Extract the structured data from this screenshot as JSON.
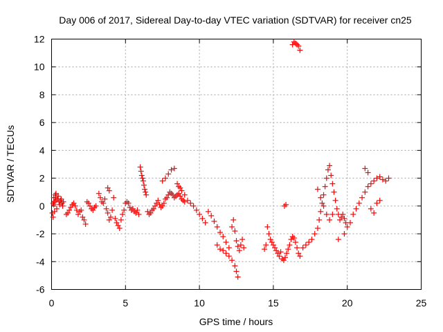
{
  "chart_data": {
    "type": "scatter",
    "title": "Day 006 of 2017, Sidereal Day-to-day VTEC variation (SDTVAR) for receiver cn25",
    "xlabel": "GPS time / hours",
    "ylabel": "SDTVAR / TECUs",
    "xlim": [
      0,
      25
    ],
    "ylim": [
      -6,
      12
    ],
    "x_ticks": [
      0,
      5,
      10,
      15,
      20,
      25
    ],
    "y_ticks": [
      -6,
      -4,
      -2,
      0,
      2,
      4,
      6,
      8,
      10,
      12
    ],
    "grid": true,
    "marker": "+",
    "series_color": "#ff0000",
    "series": [
      {
        "name": "SDTVAR",
        "x": [
          0.05,
          0.1,
          0.15,
          0.2,
          0.25,
          0.3,
          0.35,
          0.4,
          0.45,
          0.5,
          0.55,
          0.6,
          0.65,
          0.7,
          0.75,
          0.8,
          0.1,
          0.2,
          0.3,
          0.15,
          0.25,
          1.0,
          1.1,
          1.2,
          1.3,
          1.4,
          1.5,
          1.6,
          1.7,
          1.8,
          1.9,
          2.0,
          2.1,
          2.2,
          2.3,
          2.4,
          2.5,
          2.6,
          2.7,
          2.8,
          2.9,
          3.0,
          3.2,
          3.3,
          3.4,
          3.5,
          3.6,
          3.7,
          3.8,
          3.9,
          4.0,
          4.1,
          4.2,
          3.8,
          3.9,
          4.3,
          4.4,
          4.5,
          4.6,
          4.7,
          4.8,
          4.9,
          5.0,
          5.1,
          5.2,
          5.3,
          5.4,
          5.5,
          5.6,
          5.7,
          5.8,
          5.9,
          6.0,
          6.05,
          6.1,
          6.15,
          6.2,
          6.25,
          6.3,
          6.35,
          6.4,
          6.5,
          6.6,
          6.7,
          6.8,
          6.9,
          7.0,
          7.1,
          7.2,
          7.3,
          7.4,
          7.5,
          7.6,
          7.7,
          7.8,
          7.9,
          8.0,
          8.1,
          8.2,
          8.3,
          8.4,
          8.5,
          8.6,
          8.7,
          8.8,
          8.9,
          9.0,
          7.5,
          7.7,
          7.9,
          8.1,
          8.3,
          8.5,
          8.6,
          8.7,
          8.8,
          9.0,
          9.2,
          9.4,
          9.6,
          9.8,
          10.0,
          10.2,
          10.4,
          10.6,
          10.8,
          11.0,
          11.2,
          11.4,
          11.6,
          11.8,
          12.0,
          12.2,
          12.3,
          12.4,
          12.5,
          12.6,
          12.7,
          12.8,
          12.9,
          13.0,
          11.2,
          11.4,
          11.6,
          11.8,
          12.0,
          12.2,
          12.4,
          12.5,
          12.6,
          14.4,
          14.5,
          14.6,
          14.7,
          14.8,
          14.9,
          15.0,
          15.1,
          15.2,
          15.3,
          15.4,
          15.5,
          15.6,
          15.7,
          15.8,
          15.9,
          16.0,
          16.1,
          16.2,
          16.3,
          16.4,
          16.5,
          16.6,
          16.7,
          16.8,
          15.75,
          15.85,
          16.3,
          16.4,
          16.5,
          16.6,
          16.7,
          16.8,
          17.0,
          17.2,
          17.4,
          17.6,
          17.8,
          18.0,
          18.1,
          18.2,
          18.3,
          18.4,
          18.5,
          18.6,
          18.7,
          18.8,
          18.9,
          19.0,
          19.1,
          19.2,
          19.3,
          19.4,
          19.5,
          19.6,
          19.7,
          19.8,
          19.9,
          20.0,
          18.0,
          18.2,
          18.4,
          18.6,
          18.8,
          19.0,
          19.4,
          19.8,
          20.2,
          20.4,
          20.6,
          20.8,
          21.0,
          21.2,
          21.4,
          21.6,
          21.8,
          22.0,
          22.2,
          22.4,
          22.6,
          22.8,
          21.2,
          21.4,
          21.6,
          21.8,
          22.0,
          22.2
        ],
        "y": [
          -0.5,
          0.2,
          0.6,
          0.3,
          0.8,
          0.4,
          -0.2,
          0.5,
          0.7,
          0.3,
          0.1,
          0.4,
          0.5,
          0.2,
          0.0,
          0.3,
          -0.8,
          -0.4,
          0.9,
          0.1,
          0.6,
          -0.6,
          -0.5,
          -0.3,
          -0.1,
          0.1,
          0.2,
          0.0,
          -0.3,
          -0.6,
          -0.4,
          -0.3,
          -0.8,
          -1.0,
          -1.3,
          0.3,
          0.2,
          0.0,
          -0.2,
          -0.3,
          -0.1,
          0.0,
          0.9,
          0.6,
          0.3,
          0.2,
          0.5,
          -0.2,
          -0.5,
          -1.0,
          -0.8,
          -0.3,
          0.6,
          1.3,
          1.1,
          -0.9,
          -1.2,
          -1.4,
          -1.6,
          -1.0,
          -0.6,
          -0.3,
          0.2,
          0.3,
          0.2,
          -0.1,
          -0.3,
          -0.2,
          -0.4,
          -0.5,
          -0.3,
          -0.6,
          2.8,
          2.5,
          2.2,
          2.0,
          1.8,
          1.5,
          1.2,
          1.0,
          0.8,
          -0.4,
          -0.6,
          -0.5,
          -0.3,
          -0.2,
          0.0,
          0.2,
          0.4,
          0.1,
          -0.1,
          0.0,
          0.2,
          0.5,
          0.6,
          0.8,
          1.0,
          0.9,
          0.8,
          0.6,
          0.7,
          0.8,
          0.9,
          0.7,
          0.5,
          0.4,
          0.3,
          1.8,
          2.0,
          2.3,
          2.6,
          2.7,
          1.6,
          1.4,
          1.3,
          1.1,
          0.8,
          0.4,
          0.2,
          0.0,
          -0.3,
          -0.6,
          -0.9,
          -1.2,
          -0.4,
          -0.7,
          -1.1,
          -1.5,
          -1.9,
          -2.2,
          -2.6,
          -3.0,
          -1.5,
          -1.0,
          -1.8,
          -2.5,
          -2.9,
          -3.2,
          -2.8,
          -2.4,
          -3.0,
          -2.8,
          -3.1,
          -3.2,
          -3.4,
          -3.6,
          -3.9,
          -4.3,
          -4.7,
          -5.1,
          -3.1,
          -2.8,
          -1.5,
          -2.0,
          -2.4,
          -2.6,
          -2.8,
          -3.0,
          -3.2,
          -3.4,
          -3.6,
          -3.3,
          -3.8,
          -3.9,
          -3.7,
          -3.4,
          -3.1,
          -2.8,
          -2.4,
          -2.2,
          -2.3,
          -2.6,
          -3.0,
          -3.4,
          -3.6,
          0.0,
          0.1,
          11.6,
          11.8,
          11.7,
          11.6,
          11.5,
          11.2,
          -3.0,
          -2.8,
          -2.6,
          -2.4,
          -2.0,
          -1.6,
          -1.0,
          -0.4,
          0.2,
          0.8,
          1.4,
          2.0,
          2.6,
          2.9,
          2.2,
          1.6,
          1.0,
          0.4,
          -0.2,
          -0.6,
          -1.0,
          -0.8,
          -0.6,
          -0.9,
          -1.2,
          -1.5,
          1.2,
          0.6,
          0.0,
          -0.6,
          -1.0,
          -0.6,
          -2.4,
          -2.0,
          -1.2,
          -0.6,
          -0.2,
          0.2,
          0.6,
          1.0,
          1.4,
          1.6,
          1.8,
          2.0,
          2.1,
          1.9,
          1.8,
          2.0,
          2.7,
          2.4,
          -0.2,
          -0.5,
          0.2,
          0.4
        ]
      }
    ]
  }
}
